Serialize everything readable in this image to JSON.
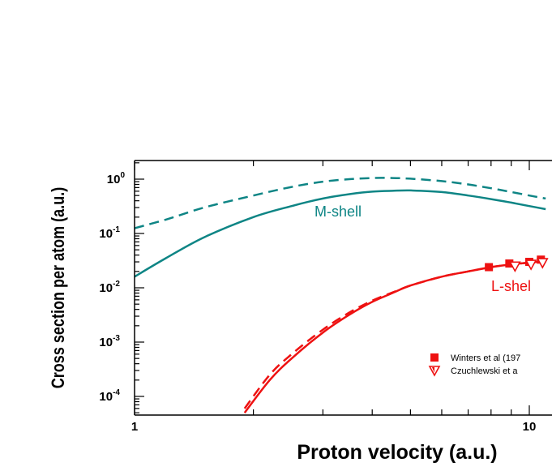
{
  "chart_data": {
    "type": "line",
    "xlabel": "Proton velocity (a.u.)",
    "ylabel": "Cross section per atom (a.u.)",
    "xscale": "log",
    "yscale": "log",
    "xlim": [
      1,
      11
    ],
    "ylim": [
      5e-05,
      2
    ],
    "x_ticks": [
      {
        "value": 1,
        "label": "1"
      },
      {
        "value": 10,
        "label": "10"
      }
    ],
    "y_ticks": [
      {
        "value": 1,
        "base": "10",
        "exp": "0"
      },
      {
        "value": 0.1,
        "base": "10",
        "exp": "-1"
      },
      {
        "value": 0.01,
        "base": "10",
        "exp": "-2"
      },
      {
        "value": 0.001,
        "base": "10",
        "exp": "-3"
      },
      {
        "value": 0.0001,
        "base": "10",
        "exp": "-4"
      }
    ],
    "colors": {
      "m_shell": "#0e8585",
      "l_shell": "#ee1111"
    },
    "annotations": [
      {
        "text": "M-shell",
        "color": "#0e8585"
      },
      {
        "text": "L-shel",
        "color": "#ee1111"
      }
    ],
    "legend": {
      "placement": "bottom-right",
      "entries": [
        {
          "label": "Winters et al (197",
          "marker": "square"
        },
        {
          "label": "Czuchlewski et a",
          "marker": "triangle-down"
        }
      ]
    },
    "series": [
      {
        "style": "dashed",
        "color": "#0e8585",
        "x": [
          1,
          1.2,
          1.5,
          2,
          2.5,
          3,
          3.5,
          4,
          4.5,
          5,
          6,
          7,
          8,
          9,
          10,
          11
        ],
        "y": [
          0.125,
          0.18,
          0.3,
          0.5,
          0.72,
          0.9,
          1.0,
          1.05,
          1.05,
          1.02,
          0.92,
          0.8,
          0.68,
          0.58,
          0.5,
          0.44
        ]
      },
      {
        "style": "solid",
        "color": "#0e8585",
        "x": [
          1,
          1.2,
          1.5,
          2,
          2.5,
          3,
          3.5,
          4,
          4.5,
          5,
          6,
          7,
          8,
          9,
          10,
          11
        ],
        "y": [
          0.016,
          0.035,
          0.085,
          0.2,
          0.32,
          0.44,
          0.53,
          0.59,
          0.61,
          0.62,
          0.58,
          0.5,
          0.43,
          0.37,
          0.32,
          0.28
        ]
      },
      {
        "style": "solid",
        "color": "#ee1111",
        "x": [
          1.9,
          2.2,
          2.5,
          3,
          3.5,
          4,
          4.5,
          5,
          6,
          7,
          8,
          9,
          10,
          11
        ],
        "y": [
          5e-05,
          0.0002,
          0.0005,
          0.0015,
          0.0032,
          0.0055,
          0.008,
          0.011,
          0.016,
          0.02,
          0.024,
          0.027,
          0.029,
          0.031
        ]
      },
      {
        "style": "dashed",
        "color": "#ee1111",
        "x": [
          1.9,
          2.2,
          2.5,
          3,
          3.5,
          4,
          4.5,
          5,
          6,
          7,
          8,
          9,
          10,
          11
        ],
        "y": [
          6e-05,
          0.00025,
          0.0006,
          0.0017,
          0.0035,
          0.0058,
          0.0082,
          0.011,
          0.016,
          0.02,
          0.024,
          0.027,
          0.029,
          0.031
        ]
      },
      {
        "style": "markers",
        "marker": "square",
        "color": "#ee1111",
        "x": [
          7.9,
          8.9,
          10,
          10.7
        ],
        "y": [
          0.024,
          0.028,
          0.03,
          0.033
        ]
      },
      {
        "style": "markers",
        "marker": "triangle-down",
        "color": "#ee1111",
        "x": [
          9.2,
          10.1,
          10.8
        ],
        "y": [
          0.025,
          0.027,
          0.029
        ]
      }
    ]
  }
}
